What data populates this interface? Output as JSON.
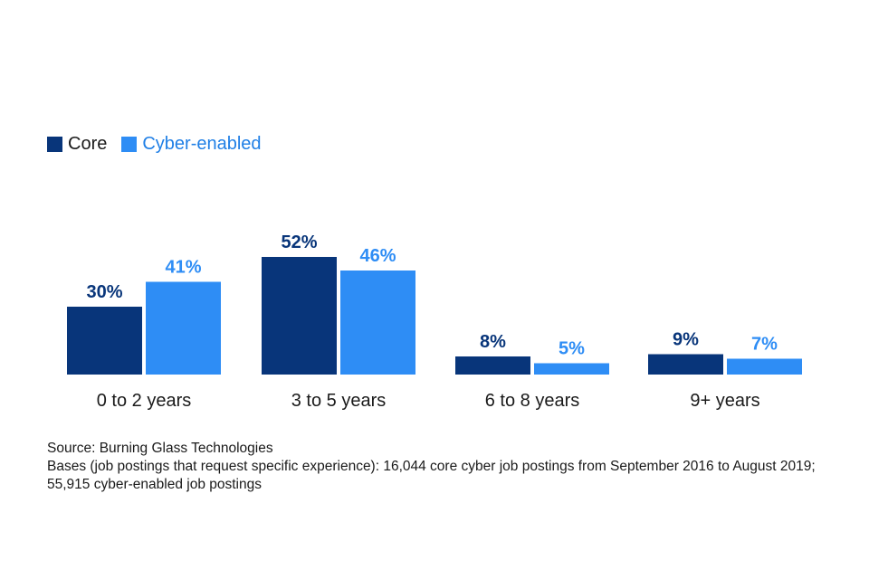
{
  "legend": [
    {
      "label": "Core",
      "color": "#08357a"
    },
    {
      "label": "Cyber-enabled",
      "color": "#2e8df5"
    }
  ],
  "chart_data": {
    "type": "bar",
    "categories": [
      "0 to 2 years",
      "3 to 5 years",
      "6 to 8 years",
      "9+ years"
    ],
    "series": [
      {
        "name": "Core",
        "values": [
          30,
          52,
          8,
          9
        ],
        "labels": [
          "30%",
          "52%",
          "8%",
          "9%"
        ],
        "color": "#08357a"
      },
      {
        "name": "Cyber-enabled",
        "values": [
          41,
          46,
          5,
          7
        ],
        "labels": [
          "41%",
          "46%",
          "5%",
          "7%"
        ],
        "color": "#2e8df5"
      }
    ],
    "ylim": [
      0,
      100
    ],
    "grid": false,
    "legend_position": "top-left"
  },
  "notes": {
    "source": "Source: Burning Glass Technologies",
    "bases": "Bases (job postings that request specific experience): 16,044 core cyber job postings from September 2016 to August 2019; 55,915 cyber-enabled job postings"
  }
}
